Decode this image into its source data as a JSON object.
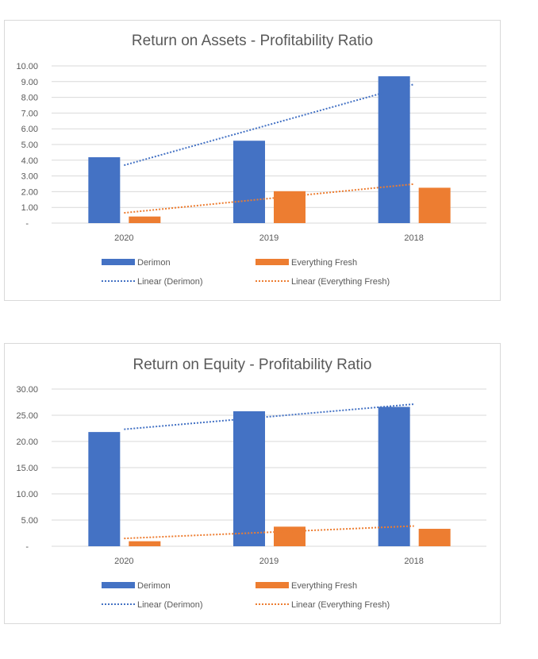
{
  "chart_data": [
    {
      "type": "bar",
      "title": "Return on Assets - Profitability Ratio",
      "categories": [
        "2020",
        "2019",
        "2018"
      ],
      "ylim": [
        0,
        10
      ],
      "yticks": [
        "-",
        "1.00",
        "2.00",
        "3.00",
        "4.00",
        "5.00",
        "6.00",
        "7.00",
        "8.00",
        "9.00",
        "10.00"
      ],
      "grid": true,
      "legend_position": "bottom",
      "series": [
        {
          "name": "Derimon",
          "values": [
            4.19,
            5.24,
            9.34
          ],
          "color": "#4472C4"
        },
        {
          "name": "Everything Fresh",
          "values": [
            0.42,
            2.03,
            2.25
          ],
          "color": "#ED7D31"
        }
      ],
      "trendlines": [
        {
          "name": "Linear (Derimon)",
          "type": "linear",
          "of": "Derimon",
          "color": "#4472C4"
        },
        {
          "name": "Linear (Everything Fresh)",
          "type": "linear",
          "of": "Everything Fresh",
          "color": "#ED7D31"
        }
      ]
    },
    {
      "type": "bar",
      "title": "Return on Equity - Profitability Ratio",
      "categories": [
        "2020",
        "2019",
        "2018"
      ],
      "ylim": [
        0,
        30
      ],
      "yticks": [
        "-",
        "5.00",
        "10.00",
        "15.00",
        "20.00",
        "25.00",
        "30.00"
      ],
      "grid": true,
      "legend_position": "bottom",
      "series": [
        {
          "name": "Derimon",
          "values": [
            21.8,
            25.76,
            26.6
          ],
          "color": "#4472C4"
        },
        {
          "name": "Everything Fresh",
          "values": [
            0.96,
            3.74,
            3.33
          ],
          "color": "#ED7D31"
        }
      ],
      "trendlines": [
        {
          "name": "Linear (Derimon)",
          "type": "linear",
          "of": "Derimon",
          "color": "#4472C4"
        },
        {
          "name": "Linear (Everything Fresh)",
          "type": "linear",
          "of": "Everything Fresh",
          "color": "#ED7D31"
        }
      ]
    }
  ]
}
